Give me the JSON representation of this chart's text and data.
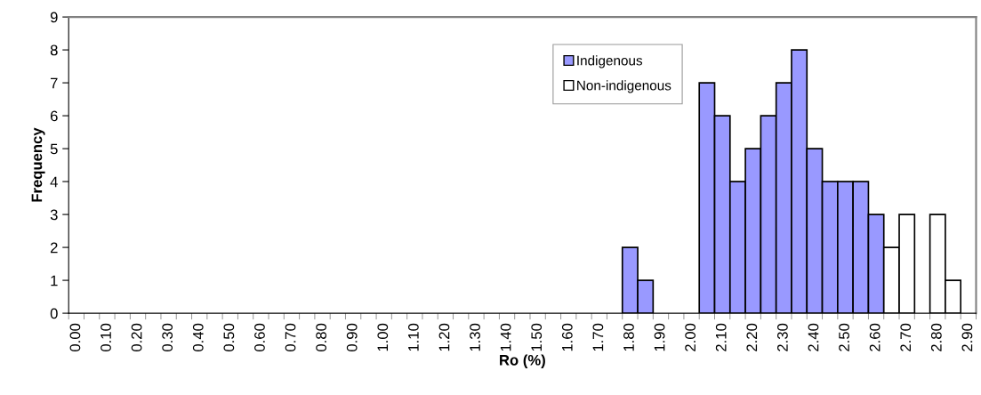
{
  "chart_data": {
    "type": "bar",
    "xlabel": "Ro (%)",
    "ylabel": "Frequency",
    "categories": [
      "0.00",
      null,
      "0.10",
      null,
      "0.20",
      null,
      "0.30",
      null,
      "0.40",
      null,
      "0.50",
      null,
      "0.60",
      null,
      "0.70",
      null,
      "0.80",
      null,
      "0.90",
      null,
      "1.00",
      null,
      "1.10",
      null,
      "1.20",
      null,
      "1.30",
      null,
      "1.40",
      null,
      "1.50",
      null,
      "1.60",
      null,
      "1.70",
      null,
      "1.80",
      null,
      "1.90",
      null,
      "2.00",
      null,
      "2.10",
      null,
      "2.20",
      null,
      "2.30",
      null,
      "2.40",
      null,
      "2.50",
      null,
      "2.60",
      null,
      "2.70",
      null,
      "2.80",
      null,
      "2.90"
    ],
    "series": [
      {
        "name": "Indigenous",
        "color": "#9999ff",
        "values": [
          null,
          null,
          null,
          null,
          null,
          null,
          null,
          null,
          null,
          null,
          null,
          null,
          null,
          null,
          null,
          null,
          null,
          null,
          null,
          null,
          null,
          null,
          null,
          null,
          null,
          null,
          null,
          null,
          null,
          null,
          null,
          null,
          null,
          null,
          null,
          null,
          2,
          1,
          null,
          null,
          null,
          7,
          6,
          4,
          5,
          6,
          7,
          8,
          5,
          4,
          4,
          4,
          3,
          null,
          null,
          null,
          null,
          null,
          null
        ]
      },
      {
        "name": "Non-indigenous",
        "color": "#ffffff",
        "values": [
          null,
          null,
          null,
          null,
          null,
          null,
          null,
          null,
          null,
          null,
          null,
          null,
          null,
          null,
          null,
          null,
          null,
          null,
          null,
          null,
          null,
          null,
          null,
          null,
          null,
          null,
          null,
          null,
          null,
          null,
          null,
          null,
          null,
          null,
          null,
          null,
          null,
          null,
          null,
          null,
          null,
          null,
          null,
          null,
          null,
          null,
          null,
          null,
          null,
          null,
          null,
          null,
          null,
          2,
          3,
          null,
          3,
          1,
          null
        ]
      }
    ],
    "ylim": [
      0,
      9
    ],
    "yticks": [
      0,
      1,
      2,
      3,
      4,
      5,
      6,
      7,
      8,
      9
    ],
    "grid": false,
    "legend": "top"
  }
}
